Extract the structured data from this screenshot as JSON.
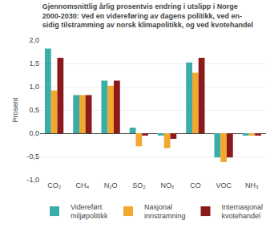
{
  "chart_data": {
    "type": "bar",
    "title": "Gjennomsnittlig årlig prosentvis endring i utslipp i Norge\n2000-2030: Ved en videreføring av dagens politikk, ved en-\nsidig tilstramming av norsk klimapolitikk, og ved kvotehandel",
    "ylabel": "Prosent",
    "categories": [
      "CO₂",
      "CH₄",
      "N₂O",
      "SO₂",
      "NOₓ",
      "CO",
      "VOC",
      "NH₃"
    ],
    "series": [
      {
        "name": "Videreført\nmiljøpolitikk",
        "color": "#3aada8",
        "values": [
          1.82,
          0.82,
          1.13,
          0.12,
          -0.05,
          1.52,
          -0.52,
          -0.05
        ]
      },
      {
        "name": "Nasjonal\ninnstramning",
        "color": "#f0a830",
        "values": [
          0.92,
          0.82,
          1.02,
          -0.28,
          -0.32,
          1.3,
          -0.62,
          -0.05
        ]
      },
      {
        "name": "Internasjonal\nkvotehandel",
        "color": "#8b1a1a",
        "values": [
          1.62,
          0.82,
          1.13,
          -0.05,
          -0.12,
          1.62,
          -0.52,
          -0.05
        ]
      }
    ],
    "ylim": [
      -1.0,
      2.0
    ],
    "yticks": [
      {
        "value": -1.0,
        "label": "-1,0"
      },
      {
        "value": -0.5,
        "label": "-0,5"
      },
      {
        "value": 0.0,
        "label": "0,0"
      },
      {
        "value": 0.5,
        "label": "0,5"
      },
      {
        "value": 1.0,
        "label": "1,0"
      },
      {
        "value": 1.5,
        "label": "1,5"
      },
      {
        "value": 2.0,
        "label": "2,0"
      }
    ],
    "grid": true,
    "legend": "bottom"
  }
}
